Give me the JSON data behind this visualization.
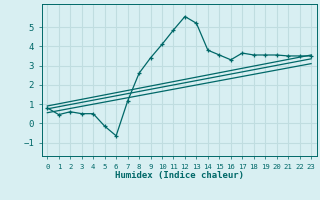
{
  "title": "",
  "xlabel": "Humidex (Indice chaleur)",
  "bg_color": "#d8eff2",
  "grid_color": "#c0dde0",
  "line_color": "#006868",
  "xlim": [
    -0.5,
    23.5
  ],
  "ylim": [
    -1.7,
    6.2
  ],
  "yticks": [
    -1,
    0,
    1,
    2,
    3,
    4,
    5
  ],
  "xticks": [
    0,
    1,
    2,
    3,
    4,
    5,
    6,
    7,
    8,
    9,
    10,
    11,
    12,
    13,
    14,
    15,
    16,
    17,
    18,
    19,
    20,
    21,
    22,
    23
  ],
  "main_x": [
    0,
    1,
    2,
    3,
    4,
    5,
    6,
    7,
    8,
    9,
    10,
    11,
    12,
    13,
    14,
    15,
    16,
    17,
    18,
    19,
    20,
    21,
    22,
    23
  ],
  "main_y": [
    0.8,
    0.45,
    0.6,
    0.5,
    0.5,
    -0.15,
    -0.65,
    1.15,
    2.6,
    3.4,
    4.1,
    4.85,
    5.55,
    5.2,
    3.8,
    3.55,
    3.3,
    3.65,
    3.55,
    3.55,
    3.55,
    3.5,
    3.5,
    3.5
  ],
  "trend1_x": [
    0,
    23
  ],
  "trend1_y": [
    0.9,
    3.55
  ],
  "trend2_x": [
    0,
    23
  ],
  "trend2_y": [
    0.75,
    3.35
  ],
  "trend3_x": [
    0,
    23
  ],
  "trend3_y": [
    0.55,
    3.1
  ]
}
